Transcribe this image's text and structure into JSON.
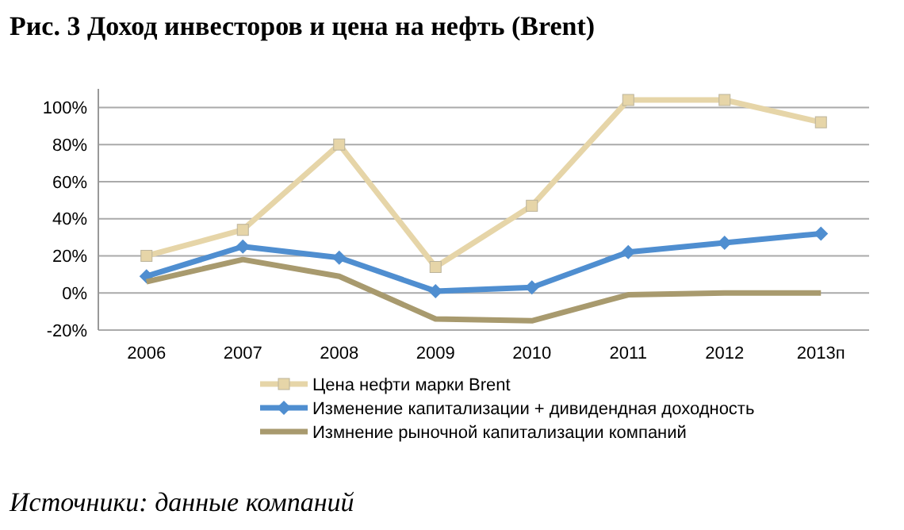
{
  "chart_data": {
    "type": "line",
    "title": "Рис. 3 Доход инвесторов и цена на нефть (Brent)",
    "categories": [
      "2006",
      "2007",
      "2008",
      "2009",
      "2010",
      "2011",
      "2012",
      "2013п"
    ],
    "series": [
      {
        "name": "Цена нефти марки Brent",
        "color": "#e6d5a8",
        "marker": "square",
        "values": [
          20,
          34,
          80,
          14,
          47,
          104,
          104,
          92
        ]
      },
      {
        "name": "Изменение капитализации + дивидендная доходность",
        "color": "#4f8ed0",
        "marker": "diamond",
        "values": [
          9,
          25,
          19,
          1,
          3,
          22,
          27,
          32
        ]
      },
      {
        "name": "Измнение рыночной капитализации компаний",
        "color": "#a89a6e",
        "marker": "none",
        "values": [
          6,
          18,
          9,
          -14,
          -15,
          -1,
          0,
          0
        ]
      }
    ],
    "ylim": [
      -20,
      110
    ],
    "yticks": [
      {
        "value": -20,
        "label": "-20%"
      },
      {
        "value": 0,
        "label": "0%"
      },
      {
        "value": 20,
        "label": "20%"
      },
      {
        "value": 40,
        "label": "40%"
      },
      {
        "value": 60,
        "label": "60%"
      },
      {
        "value": 80,
        "label": "80%"
      },
      {
        "value": 100,
        "label": "100%"
      }
    ],
    "grid": "y",
    "legend": "bottom",
    "line_style": "solid",
    "annotations": [
      "Источники: данные компаний"
    ]
  }
}
